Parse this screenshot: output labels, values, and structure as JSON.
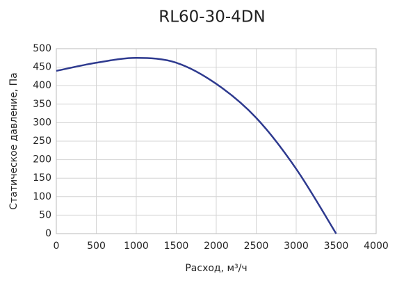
{
  "chart_data": {
    "type": "line",
    "title": "RL60-30-4DN",
    "x_label": "Расход, м³/ч",
    "y_label": "Статическое давление, Па",
    "x": [
      0,
      500,
      1000,
      1500,
      2000,
      2500,
      3000,
      3500
    ],
    "values": [
      440,
      462,
      475,
      462,
      405,
      313,
      175,
      0
    ],
    "color": "#2e3a8f",
    "xlim": [
      0,
      4000
    ],
    "xticks": [
      0,
      500,
      1000,
      1500,
      2000,
      2500,
      3000,
      3500,
      4000
    ],
    "ylim": [
      0,
      500
    ],
    "yticks": [
      0,
      50,
      100,
      150,
      200,
      250,
      300,
      350,
      400,
      450,
      500
    ],
    "grid": true
  }
}
